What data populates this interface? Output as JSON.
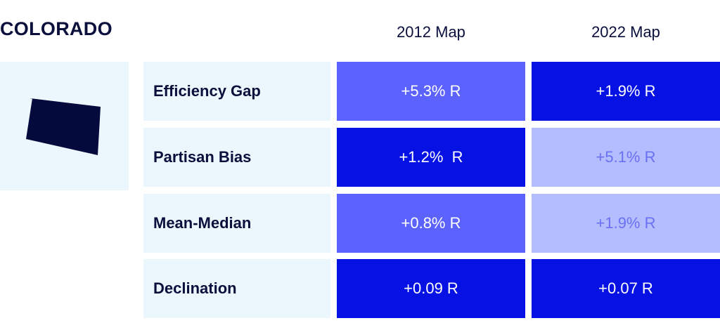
{
  "title": "COLORADO",
  "columns": [
    "2012 Map",
    "2022 Map"
  ],
  "colors": {
    "panel_bg": "#ecf7fd",
    "state_fill": "#050a3c",
    "text_dark": "#0a0f3c",
    "shade_medium": "#5b62fe",
    "shade_dark": "#0612e4",
    "shade_light": "#b4befe",
    "shade_light_text": "#6a70f3"
  },
  "state_icon": "colorado-state-shape",
  "rows": [
    {
      "metric": "Efficiency Gap",
      "map_2012": {
        "value": "+5.3% R",
        "shade": "medium"
      },
      "map_2022": {
        "value": "+1.9% R",
        "shade": "dark"
      }
    },
    {
      "metric": "Partisan Bias",
      "map_2012": {
        "value": "+1.2%  R",
        "shade": "dark"
      },
      "map_2022": {
        "value": "+5.1% R",
        "shade": "light"
      }
    },
    {
      "metric": "Mean-Median",
      "map_2012": {
        "value": "+0.8% R",
        "shade": "medium"
      },
      "map_2022": {
        "value": "+1.9% R",
        "shade": "light"
      }
    },
    {
      "metric": "Declination",
      "map_2012": {
        "value": "+0.09 R",
        "shade": "dark"
      },
      "map_2022": {
        "value": "+0.07 R",
        "shade": "dark"
      }
    }
  ]
}
